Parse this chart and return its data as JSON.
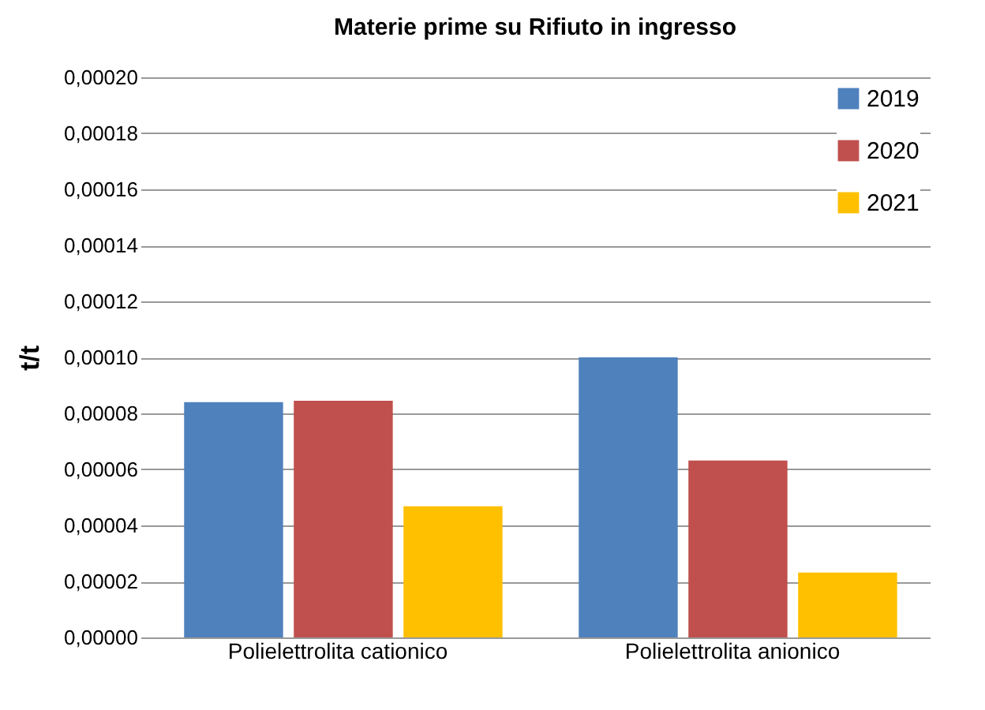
{
  "chart_data": {
    "type": "bar",
    "title": "Materie prime su Rifiuto in ingresso",
    "ylabel": "t/t",
    "categories": [
      "Polielettrolita cationico",
      "Polielettrolita anionico"
    ],
    "series": [
      {
        "name": "2019",
        "color": "#4f81bd",
        "values": [
          8.4e-05,
          0.0001
        ]
      },
      {
        "name": "2020",
        "color": "#c0504d",
        "values": [
          8.45e-05,
          6.32e-05
        ]
      },
      {
        "name": "2021",
        "color": "#ffc000",
        "values": [
          4.68e-05,
          2.32e-05
        ]
      }
    ],
    "ylim": [
      0,
      0.0002
    ],
    "yticks": [
      {
        "value": 0,
        "label": "0,00000"
      },
      {
        "value": 2e-05,
        "label": "0,00002"
      },
      {
        "value": 4e-05,
        "label": "0,00004"
      },
      {
        "value": 6e-05,
        "label": "0,00006"
      },
      {
        "value": 8e-05,
        "label": "0,00008"
      },
      {
        "value": 0.0001,
        "label": "0,00010"
      },
      {
        "value": 0.00012,
        "label": "0,00012"
      },
      {
        "value": 0.00014,
        "label": "0,00014"
      },
      {
        "value": 0.00016,
        "label": "0,00016"
      },
      {
        "value": 0.00018,
        "label": "0,00018"
      },
      {
        "value": 0.0002,
        "label": "0,00020"
      }
    ],
    "grid": "y",
    "legend": "top right"
  }
}
